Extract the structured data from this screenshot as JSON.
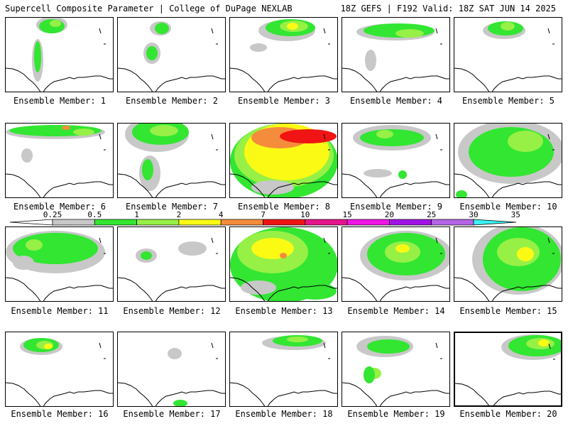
{
  "header": {
    "title": "Supercell Composite Parameter | College of DuPage NEXLAB",
    "run_info": "18Z GEFS | F192 Valid: 18Z SAT JUN 14 2025"
  },
  "panels": [
    {
      "label": "Ensemble Member: 1"
    },
    {
      "label": "Ensemble Member: 2"
    },
    {
      "label": "Ensemble Member: 3"
    },
    {
      "label": "Ensemble Member: 4"
    },
    {
      "label": "Ensemble Member: 5"
    },
    {
      "label": "Ensemble Member: 6"
    },
    {
      "label": "Ensemble Member: 7"
    },
    {
      "label": "Ensemble Member: 8"
    },
    {
      "label": "Ensemble Member: 9"
    },
    {
      "label": "Ensemble Member: 10"
    },
    {
      "label": "Ensemble Member: 11"
    },
    {
      "label": "Ensemble Member: 12"
    },
    {
      "label": "Ensemble Member: 13"
    },
    {
      "label": "Ensemble Member: 14"
    },
    {
      "label": "Ensemble Member: 15"
    },
    {
      "label": "Ensemble Member: 16"
    },
    {
      "label": "Ensemble Member: 17"
    },
    {
      "label": "Ensemble Member: 18"
    },
    {
      "label": "Ensemble Member: 19"
    },
    {
      "label": "Ensemble Member: 20",
      "selected": true
    }
  ],
  "colorbar": {
    "ticks": [
      "0.25",
      "0.5",
      "1",
      "2",
      "4",
      "7",
      "10",
      "15",
      "20",
      "25",
      "30",
      "35"
    ],
    "colors": [
      "#ffffff",
      "#c8c8c8",
      "#32e632",
      "#96f046",
      "#fafa14",
      "#f58c3c",
      "#f01414",
      "#e6148c",
      "#f014e6",
      "#a014e6",
      "#b464e6",
      "#3cf0f0"
    ]
  }
}
